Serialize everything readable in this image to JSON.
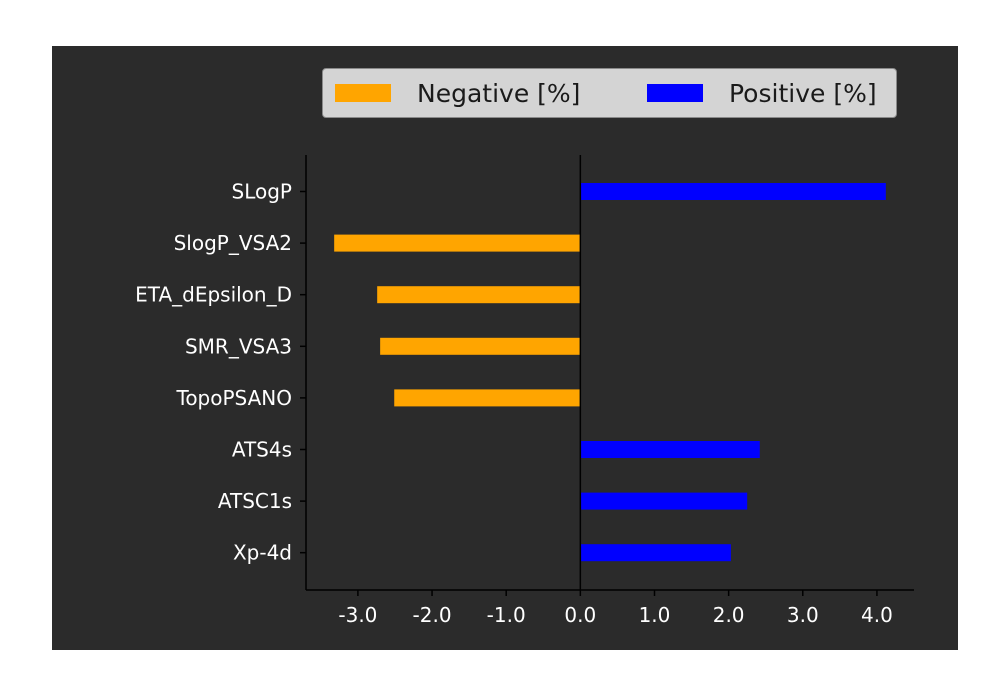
{
  "chart_data": {
    "type": "bar",
    "orientation": "horizontal",
    "categories": [
      "SLogP",
      "SlogP_VSA2",
      "ETA_dEpsilon_D",
      "SMR_VSA3",
      "TopoPSANO",
      "ATS4s",
      "ATSC1s",
      "Xp-4d"
    ],
    "values": [
      4.12,
      -3.32,
      -2.74,
      -2.7,
      -2.51,
      2.42,
      2.25,
      2.03
    ],
    "series": [
      {
        "name": "Negative [%]",
        "color": "#ffa500"
      },
      {
        "name": "Positive [%]",
        "color": "#0000ff"
      }
    ],
    "xticks": [
      "-3.0",
      "-2.0",
      "-1.0",
      "0.0",
      "1.0",
      "2.0",
      "3.0",
      "4.0"
    ],
    "xtick_values": [
      -3,
      -2,
      -1,
      0,
      1,
      2,
      3,
      4
    ],
    "xlim": [
      -3.7,
      4.5
    ],
    "title": "",
    "xlabel": "",
    "ylabel": "",
    "legend_position": "top",
    "background_color": "#2b2b2b",
    "grid": false
  }
}
